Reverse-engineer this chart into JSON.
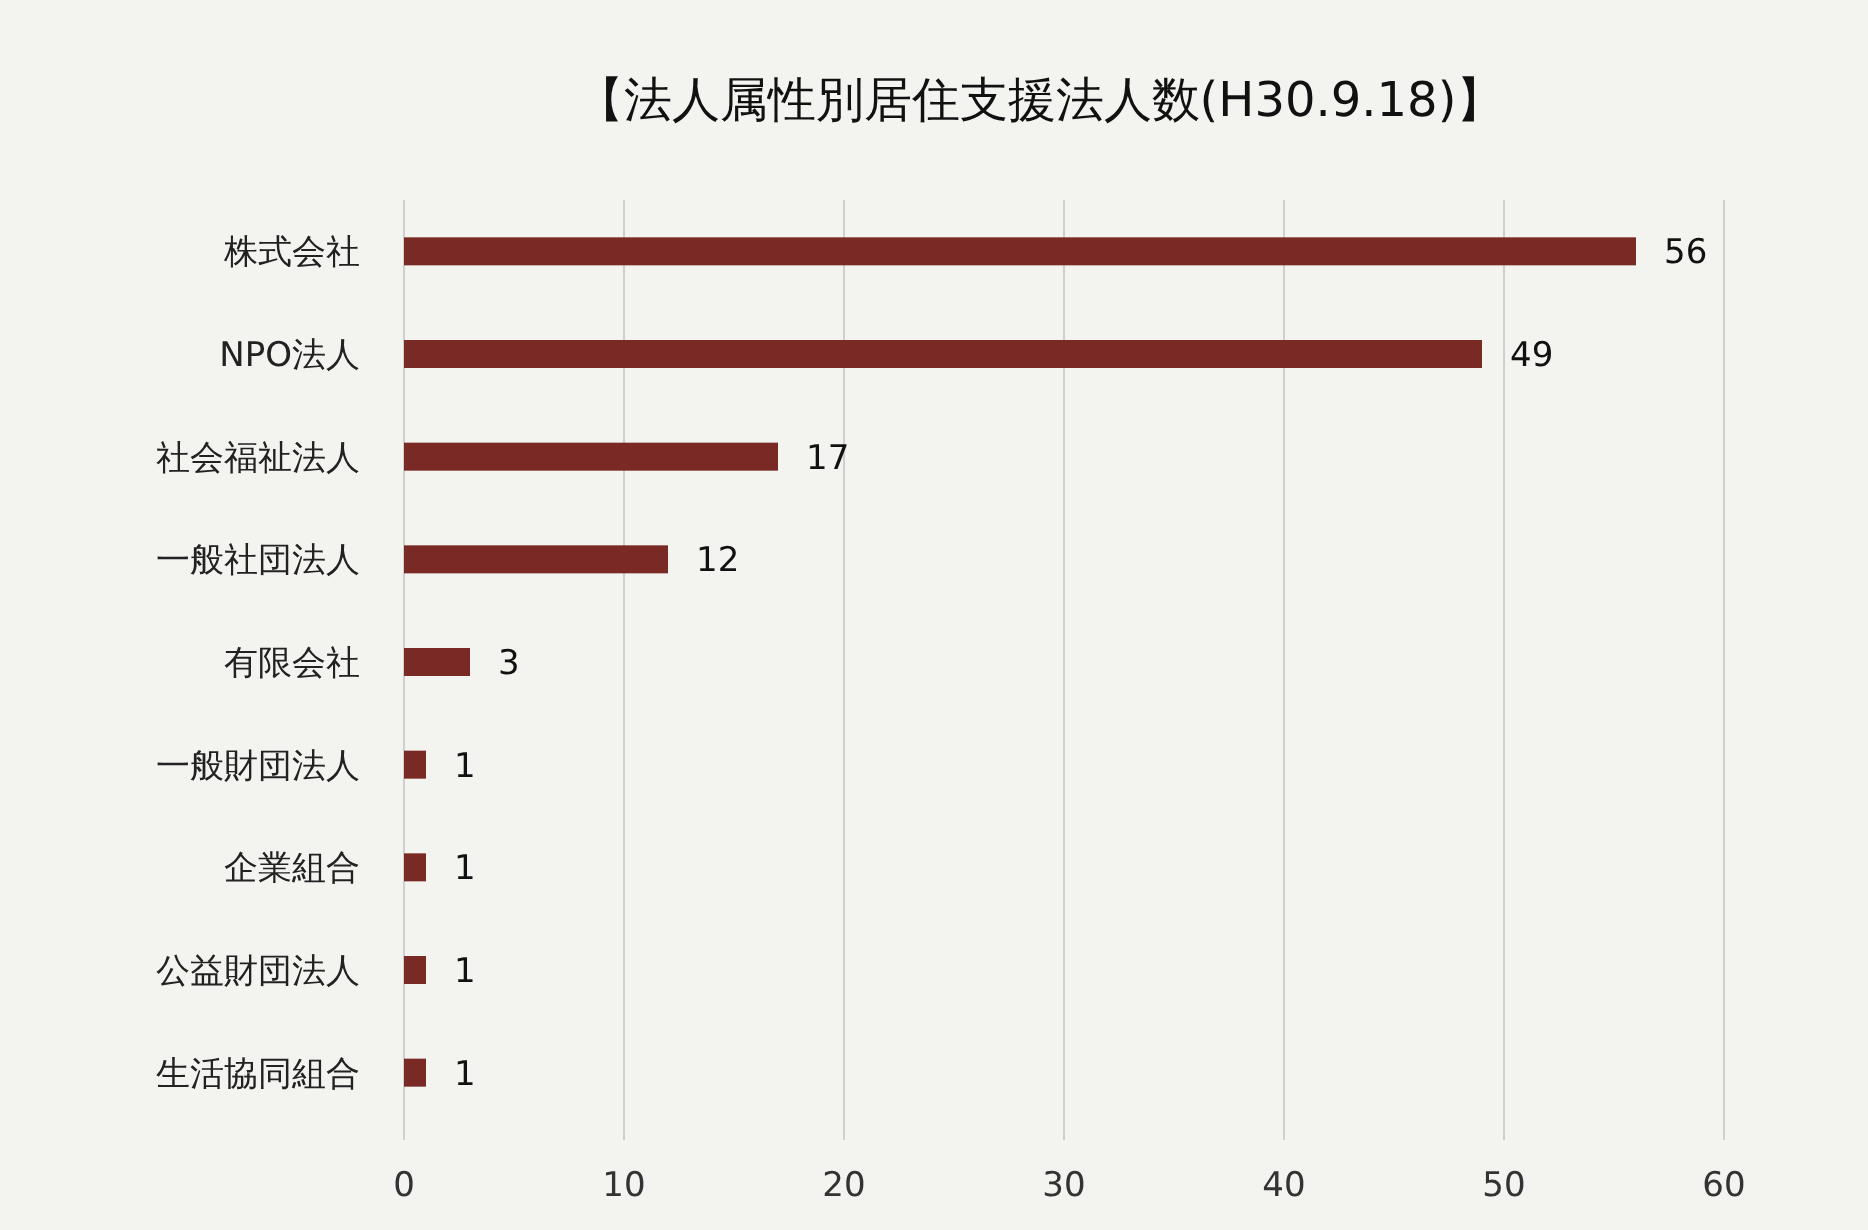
{
  "chart_data": {
    "type": "bar",
    "orientation": "horizontal",
    "title": "【法人属性別居住支援法人数(H30.9.18)】",
    "categories": [
      "株式会社",
      "NPO法人",
      "社会福祉法人",
      "一般社団法人",
      "有限会社",
      "一般財団法人",
      "企業組合",
      "公益財団法人",
      "生活協同組合"
    ],
    "values": [
      56,
      49,
      17,
      12,
      3,
      1,
      1,
      1,
      1
    ],
    "color": "#7a2a24",
    "xlim": [
      0,
      60
    ],
    "xticks": [
      0,
      10,
      20,
      30,
      40,
      50,
      60
    ],
    "grid": "x",
    "data_labels": true
  }
}
